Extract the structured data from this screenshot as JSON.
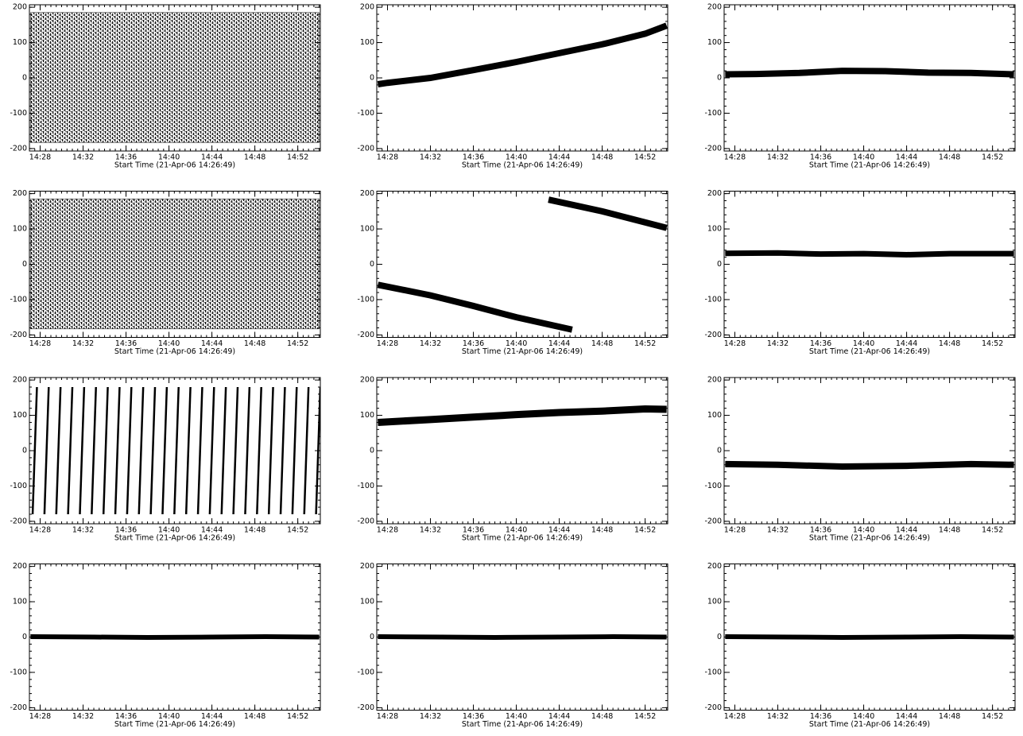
{
  "chart_data": [
    {
      "type": "band",
      "color": "#000000",
      "x": [
        27.1,
        54.0
      ],
      "lower": [
        -183,
        -183
      ],
      "upper": [
        185,
        185
      ],
      "xlim": [
        27.0,
        54.1
      ],
      "ylim": [
        -207,
        207
      ],
      "yticks": [
        -200,
        -100,
        0,
        100,
        200
      ],
      "xticks": [
        {
          "value": 28,
          "label": "14:28"
        },
        {
          "value": 32,
          "label": "14:32"
        },
        {
          "value": 36,
          "label": "14:36"
        },
        {
          "value": 40,
          "label": "14:40"
        },
        {
          "value": 44,
          "label": "14:44"
        },
        {
          "value": 48,
          "label": "14:48"
        },
        {
          "value": 52,
          "label": "14:52"
        }
      ],
      "xlabel": "Start Time (21-Apr-06 14:26:49)"
    },
    {
      "type": "line",
      "color": "#000000",
      "line_width": 8,
      "x": [
        27.1,
        28,
        32,
        36,
        40,
        44,
        48,
        52,
        54.0
      ],
      "values": [
        -18,
        -14,
        0,
        22,
        45,
        70,
        95,
        125,
        148
      ],
      "xlim": [
        27.0,
        54.1
      ],
      "ylim": [
        -207,
        207
      ],
      "yticks": [
        -200,
        -100,
        0,
        100,
        200
      ],
      "xticks": [
        {
          "value": 28,
          "label": "14:28"
        },
        {
          "value": 32,
          "label": "14:32"
        },
        {
          "value": 36,
          "label": "14:36"
        },
        {
          "value": 40,
          "label": "14:40"
        },
        {
          "value": 44,
          "label": "14:44"
        },
        {
          "value": 48,
          "label": "14:48"
        },
        {
          "value": 52,
          "label": "14:52"
        }
      ],
      "xlabel": "Start Time (21-Apr-06 14:26:49)"
    },
    {
      "type": "line",
      "color": "#000000",
      "line_width": 8,
      "x": [
        27.1,
        30,
        34,
        38,
        42,
        46,
        50,
        54.0
      ],
      "values": [
        10,
        11,
        14,
        20,
        19,
        15,
        14,
        10
      ],
      "xlim": [
        27.0,
        54.1
      ],
      "ylim": [
        -207,
        207
      ],
      "yticks": [
        -200,
        -100,
        0,
        100,
        200
      ],
      "xticks": [
        {
          "value": 28,
          "label": "14:28"
        },
        {
          "value": 32,
          "label": "14:32"
        },
        {
          "value": 36,
          "label": "14:36"
        },
        {
          "value": 40,
          "label": "14:40"
        },
        {
          "value": 44,
          "label": "14:44"
        },
        {
          "value": 48,
          "label": "14:48"
        },
        {
          "value": 52,
          "label": "14:52"
        }
      ],
      "xlabel": "Start Time (21-Apr-06 14:26:49)"
    },
    {
      "type": "band",
      "color": "#000000",
      "x": [
        27.1,
        54.0
      ],
      "lower": [
        -183,
        -183
      ],
      "upper": [
        185,
        185
      ],
      "xlim": [
        27.0,
        54.1
      ],
      "ylim": [
        -207,
        207
      ],
      "yticks": [
        -200,
        -100,
        0,
        100,
        200
      ],
      "xticks": [
        {
          "value": 28,
          "label": "14:28"
        },
        {
          "value": 32,
          "label": "14:32"
        },
        {
          "value": 36,
          "label": "14:36"
        },
        {
          "value": 40,
          "label": "14:40"
        },
        {
          "value": 44,
          "label": "14:44"
        },
        {
          "value": 48,
          "label": "14:48"
        },
        {
          "value": 52,
          "label": "14:52"
        }
      ],
      "xlabel": "Start Time (21-Apr-06 14:26:49)"
    },
    {
      "type": "line",
      "color": "#000000",
      "line_width": 8,
      "x": [
        27.1,
        32,
        36,
        40,
        45.2,
        null,
        43.0,
        48,
        54.0
      ],
      "values": [
        -58,
        -88,
        -118,
        -150,
        -185,
        null,
        183,
        150,
        103
      ],
      "xlim": [
        27.0,
        54.1
      ],
      "ylim": [
        -207,
        207
      ],
      "yticks": [
        -200,
        -100,
        0,
        100,
        200
      ],
      "xticks": [
        {
          "value": 28,
          "label": "14:28"
        },
        {
          "value": 32,
          "label": "14:32"
        },
        {
          "value": 36,
          "label": "14:36"
        },
        {
          "value": 40,
          "label": "14:40"
        },
        {
          "value": 44,
          "label": "14:44"
        },
        {
          "value": 48,
          "label": "14:48"
        },
        {
          "value": 52,
          "label": "14:52"
        }
      ],
      "xlabel": "Start Time (21-Apr-06 14:26:49)"
    },
    {
      "type": "line",
      "color": "#000000",
      "line_width": 7,
      "x": [
        27.1,
        32,
        36,
        40,
        44,
        48,
        54.0
      ],
      "values": [
        31,
        32,
        29,
        30,
        27,
        30,
        30
      ],
      "xlim": [
        27.0,
        54.1
      ],
      "ylim": [
        -207,
        207
      ],
      "yticks": [
        -200,
        -100,
        0,
        100,
        200
      ],
      "xticks": [
        {
          "value": 28,
          "label": "14:28"
        },
        {
          "value": 32,
          "label": "14:32"
        },
        {
          "value": 36,
          "label": "14:36"
        },
        {
          "value": 40,
          "label": "14:40"
        },
        {
          "value": 44,
          "label": "14:44"
        },
        {
          "value": 48,
          "label": "14:48"
        },
        {
          "value": 52,
          "label": "14:52"
        }
      ],
      "xlabel": "Start Time (21-Apr-06 14:26:49)"
    },
    {
      "type": "line",
      "color": "#000000",
      "line_width": 2.5,
      "x": [
        27.3,
        27.7,
        null,
        28.4,
        28.8,
        null,
        29.5,
        29.9,
        null,
        30.6,
        31.0,
        null,
        31.7,
        32.1,
        null,
        32.8,
        33.2,
        null,
        33.9,
        34.3,
        null,
        35.0,
        35.4,
        null,
        36.1,
        36.5,
        null,
        37.2,
        37.6,
        null,
        38.3,
        38.7,
        null,
        39.4,
        39.8,
        null,
        40.5,
        40.9,
        null,
        41.6,
        42.0,
        null,
        42.7,
        43.1,
        null,
        43.8,
        44.2,
        null,
        44.9,
        45.3,
        null,
        46.0,
        46.4,
        null,
        47.1,
        47.5,
        null,
        48.2,
        48.6,
        null,
        49.3,
        49.7,
        null,
        50.4,
        50.8,
        null,
        51.5,
        51.9,
        null,
        52.6,
        53.0,
        null,
        53.7,
        54.1
      ],
      "values": [
        -180,
        180,
        null,
        -180,
        180,
        null,
        -180,
        180,
        null,
        -180,
        180,
        null,
        -180,
        180,
        null,
        -180,
        180,
        null,
        -180,
        180,
        null,
        -180,
        180,
        null,
        -180,
        180,
        null,
        -180,
        180,
        null,
        -180,
        180,
        null,
        -180,
        180,
        null,
        -180,
        180,
        null,
        -180,
        180,
        null,
        -180,
        180,
        null,
        -180,
        180,
        null,
        -180,
        180,
        null,
        -180,
        180,
        null,
        -180,
        180,
        null,
        -180,
        180,
        null,
        -180,
        180,
        null,
        -180,
        180,
        null,
        -180,
        180,
        null,
        -180,
        180,
        null,
        -180,
        180
      ],
      "xlim": [
        27.0,
        54.1
      ],
      "ylim": [
        -207,
        207
      ],
      "yticks": [
        -200,
        -100,
        0,
        100,
        200
      ],
      "xticks": [
        {
          "value": 28,
          "label": "14:28"
        },
        {
          "value": 32,
          "label": "14:32"
        },
        {
          "value": 36,
          "label": "14:36"
        },
        {
          "value": 40,
          "label": "14:40"
        },
        {
          "value": 44,
          "label": "14:44"
        },
        {
          "value": 48,
          "label": "14:48"
        },
        {
          "value": 52,
          "label": "14:52"
        }
      ],
      "xlabel": "Start Time (21-Apr-06 14:26:49)"
    },
    {
      "type": "line",
      "color": "#000000",
      "line_width": 9,
      "x": [
        27.1,
        32,
        36,
        40,
        44,
        48,
        52,
        54.0
      ],
      "values": [
        80,
        88,
        95,
        102,
        108,
        112,
        118,
        117
      ],
      "xlim": [
        27.0,
        54.1
      ],
      "ylim": [
        -207,
        207
      ],
      "yticks": [
        -200,
        -100,
        0,
        100,
        200
      ],
      "xticks": [
        {
          "value": 28,
          "label": "14:28"
        },
        {
          "value": 32,
          "label": "14:32"
        },
        {
          "value": 36,
          "label": "14:36"
        },
        {
          "value": 40,
          "label": "14:40"
        },
        {
          "value": 44,
          "label": "14:44"
        },
        {
          "value": 48,
          "label": "14:48"
        },
        {
          "value": 52,
          "label": "14:52"
        }
      ],
      "xlabel": "Start Time (21-Apr-06 14:26:49)"
    },
    {
      "type": "line",
      "color": "#000000",
      "line_width": 8,
      "x": [
        27.1,
        32,
        38,
        44,
        50,
        54.0
      ],
      "values": [
        -38,
        -40,
        -45,
        -43,
        -38,
        -40
      ],
      "xlim": [
        27.0,
        54.1
      ],
      "ylim": [
        -207,
        207
      ],
      "yticks": [
        -200,
        -100,
        0,
        100,
        200
      ],
      "xticks": [
        {
          "value": 28,
          "label": "14:28"
        },
        {
          "value": 32,
          "label": "14:32"
        },
        {
          "value": 36,
          "label": "14:36"
        },
        {
          "value": 40,
          "label": "14:40"
        },
        {
          "value": 44,
          "label": "14:44"
        },
        {
          "value": 48,
          "label": "14:48"
        },
        {
          "value": 52,
          "label": "14:52"
        }
      ],
      "xlabel": "Start Time (21-Apr-06 14:26:49)"
    },
    {
      "type": "line",
      "color": "#000000",
      "line_width": 6,
      "x": [
        27.1,
        33,
        38,
        44,
        49,
        54.0
      ],
      "values": [
        1,
        0,
        -1,
        0,
        1,
        0
      ],
      "xlim": [
        27.0,
        54.1
      ],
      "ylim": [
        -207,
        207
      ],
      "yticks": [
        -200,
        -100,
        0,
        100,
        200
      ],
      "xticks": [
        {
          "value": 28,
          "label": "14:28"
        },
        {
          "value": 32,
          "label": "14:32"
        },
        {
          "value": 36,
          "label": "14:36"
        },
        {
          "value": 40,
          "label": "14:40"
        },
        {
          "value": 44,
          "label": "14:44"
        },
        {
          "value": 48,
          "label": "14:48"
        },
        {
          "value": 52,
          "label": "14:52"
        }
      ],
      "xlabel": "Start Time (21-Apr-06 14:26:49)"
    },
    {
      "type": "line",
      "color": "#000000",
      "line_width": 6,
      "x": [
        27.1,
        33,
        38,
        44,
        49,
        54.0
      ],
      "values": [
        1,
        0,
        -1,
        0,
        1,
        0
      ],
      "xlim": [
        27.0,
        54.1
      ],
      "ylim": [
        -207,
        207
      ],
      "yticks": [
        -200,
        -100,
        0,
        100,
        200
      ],
      "xticks": [
        {
          "value": 28,
          "label": "14:28"
        },
        {
          "value": 32,
          "label": "14:32"
        },
        {
          "value": 36,
          "label": "14:36"
        },
        {
          "value": 40,
          "label": "14:40"
        },
        {
          "value": 44,
          "label": "14:44"
        },
        {
          "value": 48,
          "label": "14:48"
        },
        {
          "value": 52,
          "label": "14:52"
        }
      ],
      "xlabel": "Start Time (21-Apr-06 14:26:49)"
    },
    {
      "type": "line",
      "color": "#000000",
      "line_width": 6,
      "x": [
        27.1,
        33,
        38,
        44,
        49,
        54.0
      ],
      "values": [
        1,
        0,
        -1,
        0,
        1,
        0
      ],
      "xlim": [
        27.0,
        54.1
      ],
      "ylim": [
        -207,
        207
      ],
      "yticks": [
        -200,
        -100,
        0,
        100,
        200
      ],
      "xticks": [
        {
          "value": 28,
          "label": "14:28"
        },
        {
          "value": 32,
          "label": "14:32"
        },
        {
          "value": 36,
          "label": "14:36"
        },
        {
          "value": 40,
          "label": "14:40"
        },
        {
          "value": 44,
          "label": "14:44"
        },
        {
          "value": 48,
          "label": "14:48"
        },
        {
          "value": 52,
          "label": "14:52"
        }
      ],
      "xlabel": "Start Time (21-Apr-06 14:26:49)"
    }
  ]
}
